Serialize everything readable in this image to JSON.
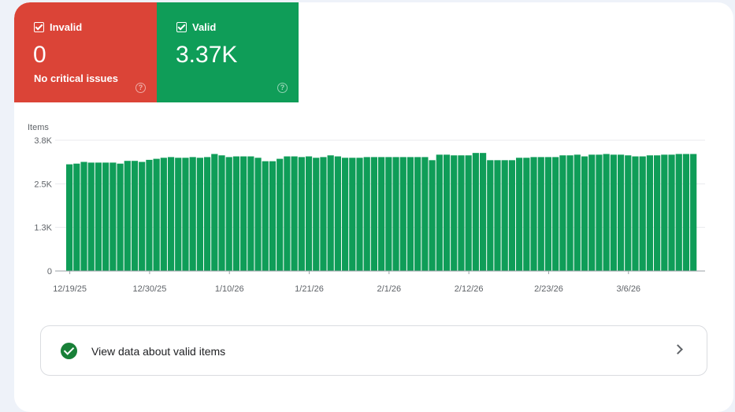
{
  "cards": {
    "invalid": {
      "label": "Invalid",
      "value": "0",
      "subtitle": "No critical issues",
      "help": "?",
      "color": "#db4437",
      "checked": true
    },
    "valid": {
      "label": "Valid",
      "value": "3.37K",
      "help": "?",
      "color": "#0f9d58",
      "checked": true
    }
  },
  "chart_data": {
    "type": "bar",
    "ylabel": "Items",
    "ylim": [
      0,
      3800
    ],
    "yticks": [
      0,
      1267,
      2533,
      3800
    ],
    "ytick_labels": [
      "0",
      "1.3K",
      "2.5K",
      "3.8K"
    ],
    "xtick_labels": [
      "12/19/25",
      "12/30/25",
      "1/10/26",
      "1/21/26",
      "2/1/26",
      "2/12/26",
      "2/23/26",
      "3/6/26"
    ],
    "grid": true,
    "color": "#0f9d58",
    "categories": [
      "12/19/25",
      "12/20/25",
      "12/21/25",
      "12/22/25",
      "12/23/25",
      "12/24/25",
      "12/25/25",
      "12/26/25",
      "12/27/25",
      "12/28/25",
      "12/29/25",
      "12/30/25",
      "12/31/25",
      "1/1/26",
      "1/2/26",
      "1/3/26",
      "1/4/26",
      "1/5/26",
      "1/6/26",
      "1/7/26",
      "1/8/26",
      "1/9/26",
      "1/10/26",
      "1/11/26",
      "1/12/26",
      "1/13/26",
      "1/14/26",
      "1/15/26",
      "1/16/26",
      "1/17/26",
      "1/18/26",
      "1/19/26",
      "1/20/26",
      "1/21/26",
      "1/22/26",
      "1/23/26",
      "1/24/26",
      "1/25/26",
      "1/26/26",
      "1/27/26",
      "1/28/26",
      "1/29/26",
      "1/30/26",
      "1/31/26",
      "2/1/26",
      "2/2/26",
      "2/3/26",
      "2/4/26",
      "2/5/26",
      "2/6/26",
      "2/7/26",
      "2/8/26",
      "2/9/26",
      "2/10/26",
      "2/11/26",
      "2/12/26",
      "2/13/26",
      "2/14/26",
      "2/15/26",
      "2/16/26",
      "2/17/26",
      "2/18/26",
      "2/19/26",
      "2/20/26",
      "2/21/26",
      "2/22/26",
      "2/23/26",
      "2/24/26",
      "2/25/26",
      "2/26/26",
      "2/27/26",
      "2/28/26",
      "3/1/26",
      "3/2/26",
      "3/3/26",
      "3/4/26",
      "3/5/26",
      "3/6/26",
      "3/7/26",
      "3/8/26",
      "3/9/26",
      "3/10/26",
      "3/11/26",
      "3/12/26",
      "3/13/26",
      "3/14/26",
      "3/15/26"
    ],
    "values": [
      3100,
      3120,
      3170,
      3150,
      3150,
      3150,
      3150,
      3120,
      3200,
      3200,
      3170,
      3230,
      3260,
      3290,
      3310,
      3290,
      3290,
      3310,
      3290,
      3310,
      3400,
      3360,
      3310,
      3330,
      3330,
      3330,
      3290,
      3190,
      3190,
      3260,
      3330,
      3330,
      3310,
      3330,
      3290,
      3310,
      3360,
      3330,
      3290,
      3290,
      3290,
      3310,
      3310,
      3310,
      3310,
      3310,
      3310,
      3310,
      3310,
      3310,
      3220,
      3380,
      3380,
      3360,
      3360,
      3360,
      3430,
      3430,
      3220,
      3220,
      3220,
      3220,
      3290,
      3290,
      3310,
      3310,
      3310,
      3310,
      3360,
      3360,
      3380,
      3330,
      3380,
      3380,
      3400,
      3380,
      3380,
      3360,
      3330,
      3330,
      3360,
      3360,
      3380,
      3380,
      3400,
      3400,
      3400
    ]
  },
  "link": {
    "label": "View data about valid items"
  }
}
